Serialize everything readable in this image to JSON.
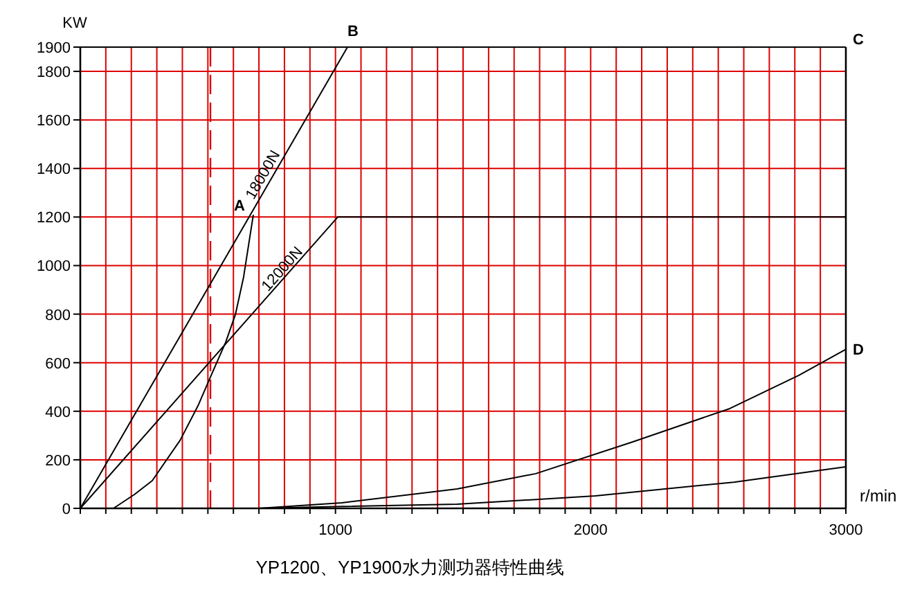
{
  "chart_data": {
    "type": "line",
    "title": "YP1200、YP1900水力测功器特性曲线",
    "xlabel": "r/min",
    "ylabel": "KW",
    "xlim": [
      0,
      3000
    ],
    "ylim": [
      0,
      1900
    ],
    "xticks": [
      {
        "value": 0,
        "label": null
      },
      {
        "value": 100,
        "label": null
      },
      {
        "value": 200,
        "label": null
      },
      {
        "value": 300,
        "label": null
      },
      {
        "value": 400,
        "label": null
      },
      {
        "value": 500,
        "label": null
      },
      {
        "value": 600,
        "label": null
      },
      {
        "value": 700,
        "label": null
      },
      {
        "value": 800,
        "label": null
      },
      {
        "value": 900,
        "label": null
      },
      1000,
      {
        "value": 1100,
        "label": null
      },
      {
        "value": 1200,
        "label": null
      },
      {
        "value": 1300,
        "label": null
      },
      {
        "value": 1400,
        "label": null
      },
      {
        "value": 1500,
        "label": null
      },
      {
        "value": 1600,
        "label": null
      },
      {
        "value": 1700,
        "label": null
      },
      {
        "value": 1800,
        "label": null
      },
      {
        "value": 1900,
        "label": null
      },
      2000,
      {
        "value": 2100,
        "label": null
      },
      {
        "value": 2200,
        "label": null
      },
      {
        "value": 2300,
        "label": null
      },
      {
        "value": 2400,
        "label": null
      },
      {
        "value": 2500,
        "label": null
      },
      {
        "value": 2600,
        "label": null
      },
      {
        "value": 2700,
        "label": null
      },
      {
        "value": 2800,
        "label": null
      },
      {
        "value": 2900,
        "label": null
      },
      3000
    ],
    "yticks": [
      0,
      200,
      400,
      600,
      800,
      1000,
      1200,
      1400,
      1600,
      1800,
      1900
    ],
    "grid": true,
    "marker": "none",
    "line_style": "solid",
    "series": [
      {
        "name": "18000N",
        "color": "#000000",
        "x": [
          0,
          1047,
          3000
        ],
        "values": [
          0,
          1900,
          1900
        ]
      },
      {
        "name": "12000N",
        "color": "#000000",
        "x": [
          0,
          1009,
          3000
        ],
        "values": [
          0,
          1200,
          1200
        ]
      },
      {
        "color": "#000000",
        "x": [
          130,
          212,
          282,
          391,
          461,
          515,
          570,
          608,
          640,
          678
        ],
        "values": [
          0,
          57,
          114,
          280,
          422,
          553,
          685,
          799,
          953,
          1209
        ]
      },
      {
        "color": "#000000",
        "x": [
          700,
          852,
          1025,
          1476,
          1785,
          2165,
          2545,
          2816,
          3000
        ],
        "values": [
          0,
          11,
          23,
          80,
          143,
          274,
          411,
          548,
          655
        ]
      },
      {
        "color": "#000000",
        "x": [
          700,
          1025,
          1476,
          2018,
          2561,
          3000
        ],
        "values": [
          0,
          8,
          17,
          51,
          108,
          171
        ]
      }
    ],
    "ref_lines": [
      {
        "axis": "x",
        "value": 510,
        "label": null,
        "color": "#dd0000",
        "line_style": "dashed"
      }
    ],
    "annotations": [
      {
        "text": "A",
        "x": 678,
        "y": 1209
      },
      {
        "text": "B",
        "x": 1047,
        "y": 1900
      },
      {
        "text": "C",
        "x": 3000,
        "y": 1900
      },
      {
        "text": "D",
        "x": 3000,
        "y": 655
      }
    ]
  }
}
